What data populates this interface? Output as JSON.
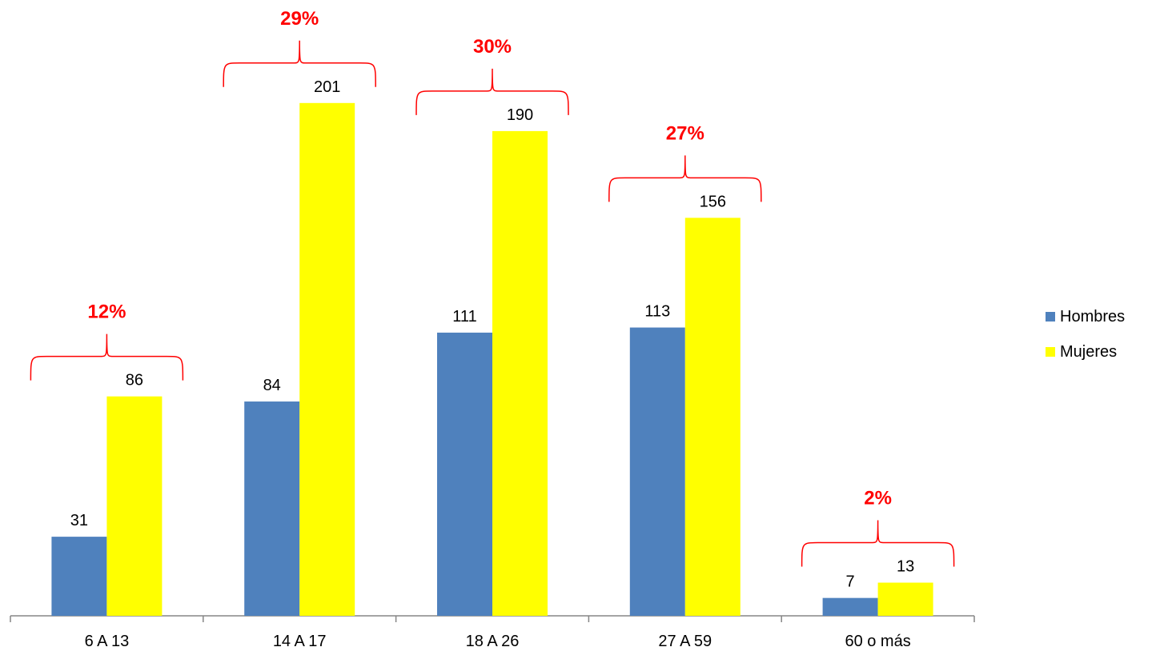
{
  "chart_data": {
    "type": "bar",
    "categories": [
      "6 A 13",
      "14 A 17",
      "18 A 26",
      "27 A 59",
      "60 o más"
    ],
    "series": [
      {
        "name": "Hombres",
        "values": [
          31,
          84,
          111,
          113,
          7
        ],
        "color": "#4F81BD"
      },
      {
        "name": "Mujeres",
        "values": [
          86,
          201,
          190,
          156,
          13
        ],
        "color": "#FFFF00"
      }
    ],
    "group_percentages": [
      "12%",
      "29%",
      "30%",
      "27%",
      "2%"
    ],
    "annotation_color": "#FF0000",
    "ylim": [
      0,
      201
    ],
    "grid": false,
    "legend_position": "right",
    "title": "",
    "xlabel": "",
    "ylabel": ""
  }
}
